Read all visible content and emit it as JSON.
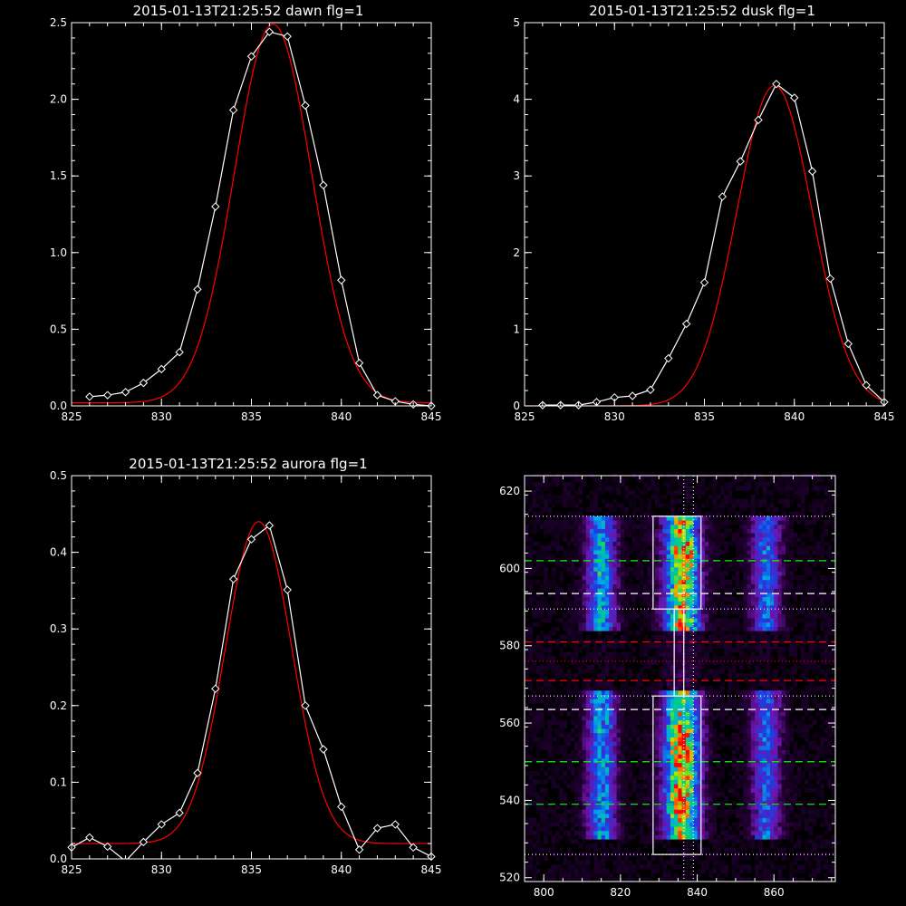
{
  "chart_data": [
    {
      "type": "line",
      "title": "2015-01-13T21:25:52 dawn flg=1",
      "xlim": [
        825,
        845
      ],
      "ylim": [
        0,
        2.5
      ],
      "xticks": [
        "825",
        "830",
        "835",
        "840",
        "845"
      ],
      "yticks": [
        "0.0",
        "0.5",
        "1.0",
        "1.5",
        "2.0",
        "2.5"
      ],
      "series": [
        {
          "color": "#ffffff",
          "marker": "diamond",
          "x": [
            826,
            827,
            828,
            829,
            830,
            831,
            832,
            833,
            834,
            835,
            836,
            837,
            838,
            839,
            840,
            841,
            842,
            843,
            844,
            845
          ],
          "y": [
            0.06,
            0.07,
            0.09,
            0.15,
            0.24,
            0.35,
            0.76,
            1.3,
            1.93,
            2.28,
            2.44,
            2.41,
            1.96,
            1.44,
            0.82,
            0.28,
            0.07,
            0.03,
            0.01,
            0.0
          ]
        },
        {
          "color": "#ff0000",
          "fit": "gaussian",
          "amplitude": 2.47,
          "center": 836.2,
          "sigma": 2.15,
          "offset": 0.02
        }
      ]
    },
    {
      "type": "line",
      "title": "2015-01-13T21:25:52 dusk flg=1",
      "xlim": [
        825,
        845
      ],
      "ylim": [
        0,
        5
      ],
      "xticks": [
        "825",
        "830",
        "835",
        "840",
        "845"
      ],
      "yticks": [
        "0",
        "1",
        "2",
        "3",
        "4",
        "5"
      ],
      "series": [
        {
          "color": "#ffffff",
          "marker": "diamond",
          "x": [
            826,
            827,
            828,
            829,
            830,
            831,
            832,
            833,
            834,
            835,
            836,
            837,
            838,
            839,
            840,
            841,
            842,
            843,
            844,
            845
          ],
          "y": [
            0.01,
            0.01,
            0.01,
            0.05,
            0.11,
            0.13,
            0.21,
            0.62,
            1.07,
            1.61,
            2.73,
            3.19,
            3.73,
            4.2,
            4.02,
            3.06,
            1.66,
            0.81,
            0.27,
            0.05
          ]
        },
        {
          "color": "#ff0000",
          "fit": "gaussian",
          "amplitude": 4.18,
          "center": 838.9,
          "sigma": 2.1,
          "offset": 0.0
        }
      ]
    },
    {
      "type": "line",
      "title": "2015-01-13T21:25:52 aurora flg=1",
      "xlim": [
        825,
        845
      ],
      "ylim": [
        0,
        0.5
      ],
      "xticks": [
        "825",
        "830",
        "835",
        "840",
        "845"
      ],
      "yticks": [
        "0.0",
        "0.1",
        "0.2",
        "0.3",
        "0.4",
        "0.5"
      ],
      "series": [
        {
          "color": "#ffffff",
          "marker": "diamond",
          "x": [
            825,
            826,
            827,
            828,
            829,
            830,
            831,
            832,
            833,
            834,
            835,
            836,
            837,
            838,
            839,
            840,
            841,
            842,
            843,
            844,
            845
          ],
          "y": [
            0.015,
            0.028,
            0.016,
            -0.003,
            0.022,
            0.045,
            0.06,
            0.112,
            0.222,
            0.365,
            0.417,
            0.435,
            0.351,
            0.2,
            0.143,
            0.068,
            0.012,
            0.04,
            0.045,
            0.015,
            0.003
          ]
        },
        {
          "color": "#ff0000",
          "fit": "gaussian",
          "amplitude": 0.42,
          "center": 835.4,
          "sigma": 1.85,
          "offset": 0.02
        }
      ]
    },
    {
      "type": "heatmap",
      "title": "",
      "xlim": [
        795,
        876
      ],
      "ylim": [
        519,
        624
      ],
      "xticks": [
        "800",
        "820",
        "840",
        "860"
      ],
      "yticks": [
        "520",
        "540",
        "560",
        "580",
        "600",
        "620"
      ],
      "bright_columns": [
        {
          "x": 815,
          "width": 9
        },
        {
          "x": 836,
          "width": 11
        },
        {
          "x": 858,
          "width": 9
        }
      ],
      "boxes": [
        {
          "x0": 828.5,
          "x1": 841,
          "y0": 589.5,
          "y1": 613.5
        },
        {
          "x0": 828.5,
          "x1": 841,
          "y0": 526,
          "y1": 567
        },
        {
          "x0": 834,
          "x1": 836.5,
          "y0": 567,
          "y1": 589.5
        }
      ],
      "hlines": [
        {
          "y": 613.5,
          "color": "#ffffff",
          "style": "dotted"
        },
        {
          "y": 602,
          "color": "#00ff00",
          "style": "dashed"
        },
        {
          "y": 593.5,
          "color": "#ffffff",
          "style": "dashed"
        },
        {
          "y": 589.5,
          "color": "#ffffff",
          "style": "dotted"
        },
        {
          "y": 581,
          "color": "#ff0000",
          "style": "dashed"
        },
        {
          "y": 576,
          "color": "#ff0000",
          "style": "dotted"
        },
        {
          "y": 571,
          "color": "#ff0000",
          "style": "dashed"
        },
        {
          "y": 567,
          "color": "#ffffff",
          "style": "dotted"
        },
        {
          "y": 563.5,
          "color": "#ffffff",
          "style": "dashed"
        },
        {
          "y": 550,
          "color": "#00ff00",
          "style": "dashed"
        },
        {
          "y": 539,
          "color": "#00ff00",
          "style": "dashed"
        },
        {
          "y": 526,
          "color": "#ffffff",
          "style": "dotted"
        }
      ],
      "vlines": [
        {
          "x": 836.5,
          "color": "#ffffff",
          "style": "dotted"
        },
        {
          "x": 839,
          "color": "#ffffff",
          "style": "dotted"
        }
      ]
    }
  ]
}
